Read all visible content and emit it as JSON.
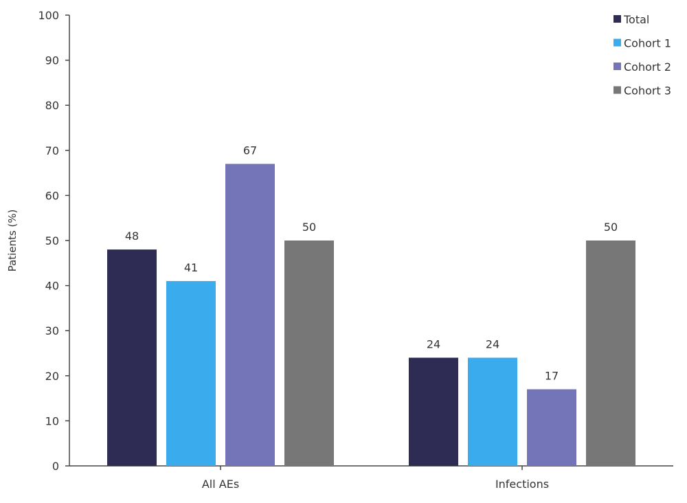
{
  "chart_data": {
    "type": "bar",
    "title": "",
    "xlabel": "",
    "ylabel": "Patients (%)",
    "ylim": [
      0,
      100
    ],
    "yticks": [
      0,
      10,
      20,
      30,
      40,
      50,
      60,
      70,
      80,
      90,
      100
    ],
    "grid": false,
    "legend_position": "top-right",
    "categories": [
      "All AEs",
      "Infections"
    ],
    "series": [
      {
        "name": "Total",
        "color": "#2e2c55",
        "values": [
          48,
          24
        ]
      },
      {
        "name": "Cohort 1",
        "color": "#3aabec",
        "values": [
          41,
          24
        ]
      },
      {
        "name": "Cohort 2",
        "color": "#7475b9",
        "values": [
          67,
          17
        ]
      },
      {
        "name": "Cohort 3",
        "color": "#777777",
        "values": [
          50,
          50
        ]
      }
    ]
  }
}
